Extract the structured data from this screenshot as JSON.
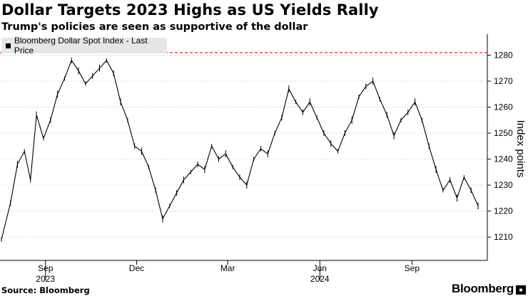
{
  "title": "Dollar Targets 2023 Highs as US Yields Rally",
  "subtitle": "Trump's policies are seen as supportive of the dollar",
  "source": "Source: Bloomberg",
  "brand": "Bloomberg",
  "brand_mark_icon": "bloomberg-news-mark",
  "chart_data": {
    "type": "line",
    "legend": [
      "Bloomberg Dollar Spot Index - Last Price"
    ],
    "ylabel": "Index points",
    "ylim": [
      1201,
      1287
    ],
    "yticks": [
      1210,
      1220,
      1230,
      1240,
      1250,
      1260,
      1270,
      1280
    ],
    "x_range": [
      "2023-07-19",
      "2024-11-06"
    ],
    "xticks": [
      {
        "label": "Sep",
        "date": "2023-09-01",
        "year": "2023"
      },
      {
        "label": "Dec",
        "date": "2023-12-01"
      },
      {
        "label": "Mar",
        "date": "2024-03-01"
      },
      {
        "label": "Jun",
        "date": "2024-06-01",
        "year": "2024"
      },
      {
        "label": "Sep",
        "date": "2024-09-01"
      }
    ],
    "reference_line": {
      "value": 1281,
      "style": "dashed",
      "color": "#e0393e"
    },
    "series": [
      {
        "name": "Bloomberg Dollar Spot Index - Last Price",
        "color": "#000000",
        "points": [
          [
            "2023-07-19",
            1209
          ],
          [
            "2023-07-28",
            1223
          ],
          [
            "2023-08-04",
            1238
          ],
          [
            "2023-08-11",
            1243
          ],
          [
            "2023-08-17",
            1232
          ],
          [
            "2023-08-23",
            1257
          ],
          [
            "2023-08-30",
            1248
          ],
          [
            "2023-09-06",
            1255
          ],
          [
            "2023-09-13",
            1265
          ],
          [
            "2023-09-20",
            1271
          ],
          [
            "2023-09-27",
            1278
          ],
          [
            "2023-10-04",
            1274
          ],
          [
            "2023-10-11",
            1269
          ],
          [
            "2023-10-18",
            1272
          ],
          [
            "2023-10-25",
            1275
          ],
          [
            "2023-11-01",
            1278
          ],
          [
            "2023-11-08",
            1273
          ],
          [
            "2023-11-15",
            1262
          ],
          [
            "2023-11-22",
            1255
          ],
          [
            "2023-11-29",
            1245
          ],
          [
            "2023-12-06",
            1243
          ],
          [
            "2023-12-13",
            1237
          ],
          [
            "2023-12-20",
            1228
          ],
          [
            "2023-12-27",
            1217
          ],
          [
            "2024-01-03",
            1222
          ],
          [
            "2024-01-10",
            1227
          ],
          [
            "2024-01-17",
            1232
          ],
          [
            "2024-01-24",
            1235
          ],
          [
            "2024-01-31",
            1238
          ],
          [
            "2024-02-07",
            1236
          ],
          [
            "2024-02-14",
            1245
          ],
          [
            "2024-02-21",
            1240
          ],
          [
            "2024-02-28",
            1242
          ],
          [
            "2024-03-06",
            1237
          ],
          [
            "2024-03-13",
            1233
          ],
          [
            "2024-03-20",
            1230
          ],
          [
            "2024-03-27",
            1240
          ],
          [
            "2024-04-03",
            1244
          ],
          [
            "2024-04-10",
            1242
          ],
          [
            "2024-04-17",
            1250
          ],
          [
            "2024-04-24",
            1256
          ],
          [
            "2024-05-01",
            1267
          ],
          [
            "2024-05-08",
            1262
          ],
          [
            "2024-05-15",
            1258
          ],
          [
            "2024-05-22",
            1262
          ],
          [
            "2024-05-29",
            1256
          ],
          [
            "2024-06-05",
            1250
          ],
          [
            "2024-06-12",
            1246
          ],
          [
            "2024-06-19",
            1243
          ],
          [
            "2024-06-26",
            1250
          ],
          [
            "2024-07-03",
            1255
          ],
          [
            "2024-07-10",
            1264
          ],
          [
            "2024-07-17",
            1268
          ],
          [
            "2024-07-24",
            1270
          ],
          [
            "2024-07-31",
            1263
          ],
          [
            "2024-08-07",
            1257
          ],
          [
            "2024-08-14",
            1249
          ],
          [
            "2024-08-21",
            1255
          ],
          [
            "2024-08-28",
            1258
          ],
          [
            "2024-09-04",
            1262
          ],
          [
            "2024-09-11",
            1255
          ],
          [
            "2024-09-18",
            1245
          ],
          [
            "2024-09-25",
            1236
          ],
          [
            "2024-10-02",
            1228
          ],
          [
            "2024-10-09",
            1232
          ],
          [
            "2024-10-16",
            1225
          ],
          [
            "2024-10-23",
            1233
          ],
          [
            "2024-10-30",
            1228
          ],
          [
            "2024-11-06",
            1222
          ]
        ]
      }
    ]
  }
}
